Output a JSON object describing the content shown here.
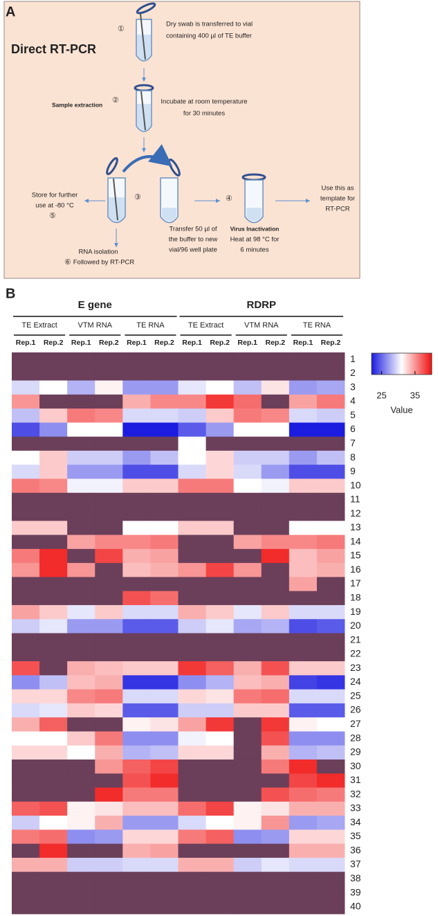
{
  "diagram": {
    "label": "A",
    "title": "Direct RT-PCR",
    "steps": [
      {
        "number": "①",
        "lines": [
          "Dry swab is transferred to vial",
          "containing 400 µl of TE buffer"
        ]
      },
      {
        "number": "②",
        "heading": "Sample extraction",
        "lines": [
          "Incubate at room temperature",
          "for 30 minutes"
        ]
      },
      {
        "number": "③",
        "lines": [
          "Transfer 50 µl of",
          "the buffer to new",
          "vial/96 well plate"
        ]
      },
      {
        "number": "④",
        "heading": "Virus Inactivation",
        "lines": [
          "Heat at 98 °C for",
          "6 minutes"
        ]
      },
      {
        "number": "⑤",
        "lines": [
          "Store for further",
          "use at -80 °C"
        ]
      },
      {
        "number": "⑥",
        "lines": [
          "RNA isolation",
          "Followed by RT-PCR"
        ]
      }
    ],
    "output": [
      "Use this as",
      "template for",
      "RT-PCR"
    ]
  },
  "chart_data": {
    "type": "heatmap",
    "panel_label": "B",
    "column_groups": [
      {
        "name": "E gene",
        "subgroups": [
          {
            "name": "TE Extract",
            "columns": [
              "Rep.1",
              "Rep.2"
            ]
          },
          {
            "name": "VTM RNA",
            "columns": [
              "Rep.1",
              "Rep.2"
            ]
          },
          {
            "name": "TE RNA",
            "columns": [
              "Rep.1",
              "Rep.2"
            ]
          }
        ]
      },
      {
        "name": "RDRP",
        "subgroups": [
          {
            "name": "TE Extract",
            "columns": [
              "Rep.1",
              "Rep.2"
            ]
          },
          {
            "name": "VTM RNA",
            "columns": [
              "Rep.1",
              "Rep.2"
            ]
          },
          {
            "name": "TE RNA",
            "columns": [
              "Rep.1",
              "Rep.2"
            ]
          }
        ]
      }
    ],
    "rows": [
      "1",
      "2",
      "3",
      "4",
      "5",
      "6",
      "7",
      "8",
      "9",
      "10",
      "11",
      "12",
      "13",
      "14",
      "15",
      "16",
      "17",
      "18",
      "19",
      "20",
      "21",
      "22",
      "23",
      "24",
      "25",
      "26",
      "27",
      "28",
      "29",
      "30",
      "31",
      "32",
      "33",
      "34",
      "35",
      "36",
      "37",
      "38",
      "39",
      "40"
    ],
    "values": [
      [
        null,
        null,
        null,
        null,
        null,
        null,
        null,
        null,
        null,
        null,
        null,
        null
      ],
      [
        null,
        null,
        null,
        null,
        null,
        null,
        null,
        null,
        null,
        null,
        null,
        null
      ],
      [
        29.5,
        31,
        28,
        31.5,
        27,
        27,
        30,
        31,
        28.5,
        32,
        27,
        27.5
      ],
      [
        35,
        null,
        null,
        null,
        34,
        35.5,
        35.5,
        38.5,
        36.5,
        null,
        34.5,
        36
      ],
      [
        28.5,
        33,
        36,
        35.5,
        29.5,
        29.5,
        29,
        33,
        36,
        35.5,
        29.5,
        29
      ],
      [
        24,
        26.5,
        31,
        31,
        22,
        22,
        24.5,
        27,
        31,
        31,
        22,
        22
      ],
      [
        null,
        null,
        null,
        null,
        null,
        null,
        31,
        null,
        null,
        null,
        null,
        null
      ],
      [
        31,
        33,
        29,
        29,
        27,
        28.5,
        31,
        32.5,
        29,
        29,
        27,
        28.5
      ],
      [
        29.5,
        33,
        27,
        27,
        24,
        24,
        29.5,
        32.5,
        29.5,
        27,
        24,
        24
      ],
      [
        36,
        35.5,
        30.5,
        30.5,
        33,
        33,
        36,
        36,
        31,
        30.5,
        33,
        33
      ],
      [
        null,
        null,
        null,
        null,
        null,
        null,
        null,
        null,
        null,
        null,
        null,
        null
      ],
      [
        null,
        null,
        null,
        null,
        null,
        null,
        null,
        null,
        null,
        null,
        null,
        null
      ],
      [
        33,
        33,
        null,
        null,
        31,
        31,
        33,
        33,
        null,
        null,
        31,
        31
      ],
      [
        null,
        null,
        34.5,
        35.5,
        35.5,
        36,
        null,
        null,
        34.5,
        35.5,
        35.5,
        36
      ],
      [
        36,
        39,
        null,
        38,
        34,
        34.5,
        null,
        null,
        null,
        39,
        33.5,
        34.5
      ],
      [
        35,
        39,
        35,
        null,
        33.5,
        34,
        35,
        38,
        35,
        null,
        33.5,
        34
      ],
      [
        null,
        null,
        null,
        null,
        null,
        null,
        null,
        null,
        null,
        null,
        34.5,
        null
      ],
      [
        null,
        null,
        null,
        null,
        37.5,
        36.5,
        null,
        null,
        null,
        null,
        null,
        null
      ],
      [
        34.5,
        33,
        30,
        33,
        29.5,
        29.5,
        34,
        33,
        30,
        33,
        29.5,
        29.5
      ],
      [
        29,
        30,
        27,
        27,
        24.5,
        24.5,
        29,
        30,
        27.5,
        28,
        24,
        24.5
      ],
      [
        null,
        null,
        null,
        null,
        null,
        null,
        null,
        null,
        null,
        null,
        null,
        null
      ],
      [
        null,
        null,
        null,
        null,
        null,
        null,
        null,
        null,
        null,
        null,
        null,
        null
      ],
      [
        37.5,
        null,
        34,
        33.5,
        33,
        33,
        38.5,
        37,
        34,
        37.5,
        33,
        33
      ],
      [
        26.5,
        28.5,
        33.5,
        34,
        23,
        23,
        26.5,
        28,
        33.5,
        34,
        23.5,
        23
      ],
      [
        32.5,
        32.5,
        35.5,
        36,
        29.5,
        29.5,
        32.5,
        32,
        36,
        36.5,
        29.5,
        29.5
      ],
      [
        29.5,
        30,
        33,
        32.5,
        24.5,
        24.5,
        29,
        29,
        33,
        33,
        24.5,
        24.5
      ],
      [
        34,
        37,
        null,
        null,
        31.5,
        32,
        34.5,
        38.5,
        null,
        38.5,
        31.5,
        31
      ],
      [
        31,
        31,
        33,
        36,
        26.5,
        26.5,
        30.5,
        31,
        null,
        37.5,
        26.5,
        26.5
      ],
      [
        32.5,
        32.5,
        31,
        34,
        28,
        28.5,
        32.5,
        32.5,
        null,
        34,
        28,
        28.5
      ],
      [
        null,
        null,
        null,
        35,
        37,
        38,
        null,
        null,
        null,
        36,
        39,
        null
      ],
      [
        null,
        null,
        null,
        null,
        37.5,
        39,
        null,
        null,
        null,
        null,
        38,
        39
      ],
      [
        null,
        null,
        null,
        39,
        36,
        36,
        null,
        null,
        null,
        37.5,
        36.5,
        36
      ],
      [
        37,
        37.5,
        31.5,
        32,
        33.5,
        33.5,
        36.5,
        38,
        31.5,
        32,
        34,
        34
      ],
      [
        29,
        31,
        31.5,
        34,
        27,
        27,
        29.5,
        31,
        31.5,
        35,
        27,
        27.5
      ],
      [
        36,
        36.5,
        26.5,
        27,
        32.5,
        32.5,
        36,
        37,
        26.5,
        27,
        32.5,
        32.5
      ],
      [
        null,
        39,
        null,
        null,
        34,
        34.5,
        null,
        null,
        null,
        null,
        34,
        34
      ],
      [
        34,
        34,
        29,
        29,
        29.5,
        29.5,
        34,
        34,
        29,
        30,
        29.5,
        29.5
      ],
      [
        null,
        null,
        null,
        null,
        null,
        null,
        null,
        null,
        null,
        null,
        null,
        null
      ],
      [
        null,
        null,
        null,
        null,
        null,
        null,
        null,
        null,
        null,
        null,
        null,
        null
      ],
      [
        null,
        null,
        null,
        null,
        null,
        null,
        null,
        null,
        null,
        null,
        null,
        null
      ]
    ],
    "colorscale": [
      "#1c1ce0",
      "#ffffff",
      "#f01010"
    ],
    "na_color": "#6b3f5a",
    "clim": [
      22,
      40
    ],
    "cticks": [
      25,
      35
    ],
    "colorbar_label": "Value"
  }
}
